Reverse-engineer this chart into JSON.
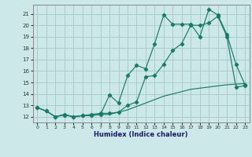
{
  "xlabel": "Humidex (Indice chaleur)",
  "background_color": "#cce8e8",
  "grid_color": "#aacccc",
  "line_color": "#1a7a6a",
  "x_ticks": [
    0,
    1,
    2,
    3,
    4,
    5,
    6,
    7,
    8,
    9,
    10,
    11,
    12,
    13,
    14,
    15,
    16,
    17,
    18,
    19,
    20,
    21,
    22,
    23
  ],
  "y_ticks": [
    12,
    13,
    14,
    15,
    16,
    17,
    18,
    19,
    20,
    21
  ],
  "ylim": [
    11.5,
    21.8
  ],
  "xlim": [
    -0.5,
    23.5
  ],
  "series1_x": [
    0,
    1,
    2,
    3,
    4,
    5,
    6,
    7,
    8,
    9,
    10,
    11,
    12,
    13,
    14,
    15,
    16,
    17,
    18,
    19,
    20,
    21,
    22,
    23
  ],
  "series1_y": [
    12.8,
    12.5,
    12.0,
    12.15,
    12.0,
    12.1,
    12.15,
    12.2,
    13.9,
    13.2,
    15.6,
    16.5,
    16.2,
    18.4,
    20.9,
    20.1,
    20.1,
    20.1,
    19.0,
    21.4,
    20.9,
    19.2,
    16.6,
    14.8
  ],
  "series2_x": [
    0,
    1,
    2,
    3,
    4,
    5,
    6,
    7,
    8,
    9,
    10,
    11,
    12,
    13,
    14,
    15,
    16,
    17,
    18,
    19,
    20,
    21,
    22,
    23
  ],
  "series2_y": [
    12.8,
    12.5,
    12.0,
    12.2,
    12.0,
    12.1,
    12.2,
    12.3,
    12.3,
    12.4,
    13.0,
    13.3,
    15.5,
    15.6,
    16.6,
    17.8,
    18.4,
    20.0,
    20.0,
    20.2,
    20.8,
    19.0,
    14.6,
    14.7
  ],
  "series3_x": [
    0,
    1,
    2,
    3,
    4,
    5,
    6,
    7,
    8,
    9,
    10,
    11,
    12,
    13,
    14,
    15,
    16,
    17,
    18,
    19,
    20,
    21,
    22,
    23
  ],
  "series3_y": [
    12.8,
    12.5,
    12.0,
    12.2,
    12.0,
    12.1,
    12.1,
    12.2,
    12.2,
    12.4,
    12.6,
    12.9,
    13.2,
    13.5,
    13.8,
    14.0,
    14.2,
    14.4,
    14.5,
    14.6,
    14.7,
    14.8,
    14.85,
    14.9
  ]
}
